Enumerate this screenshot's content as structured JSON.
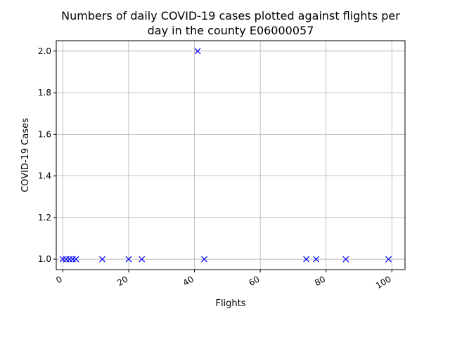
{
  "chart_data": {
    "type": "scatter",
    "title_lines": [
      "Numbers of daily COVID-19 cases plotted against flights per",
      "day in the county E06000057"
    ],
    "xlabel": "Flights",
    "ylabel": "COVID-19 Cases",
    "xlim": [
      -2,
      104
    ],
    "ylim": [
      0.95,
      2.05
    ],
    "xticks": [
      0,
      20,
      40,
      60,
      80,
      100
    ],
    "yticks": [
      1.0,
      1.2,
      1.4,
      1.6,
      1.8,
      2.0
    ],
    "ytick_labels": [
      "1.0",
      "1.2",
      "1.4",
      "1.6",
      "1.8",
      "2.0"
    ],
    "grid": true,
    "marker": "x",
    "color": "#0000ff",
    "points": [
      {
        "x": 0,
        "y": 1
      },
      {
        "x": 1,
        "y": 1
      },
      {
        "x": 2,
        "y": 1
      },
      {
        "x": 3,
        "y": 1
      },
      {
        "x": 4,
        "y": 1
      },
      {
        "x": 12,
        "y": 1
      },
      {
        "x": 20,
        "y": 1
      },
      {
        "x": 24,
        "y": 1
      },
      {
        "x": 41,
        "y": 2
      },
      {
        "x": 43,
        "y": 1
      },
      {
        "x": 74,
        "y": 1
      },
      {
        "x": 77,
        "y": 1
      },
      {
        "x": 86,
        "y": 1
      },
      {
        "x": 99,
        "y": 1
      }
    ]
  }
}
